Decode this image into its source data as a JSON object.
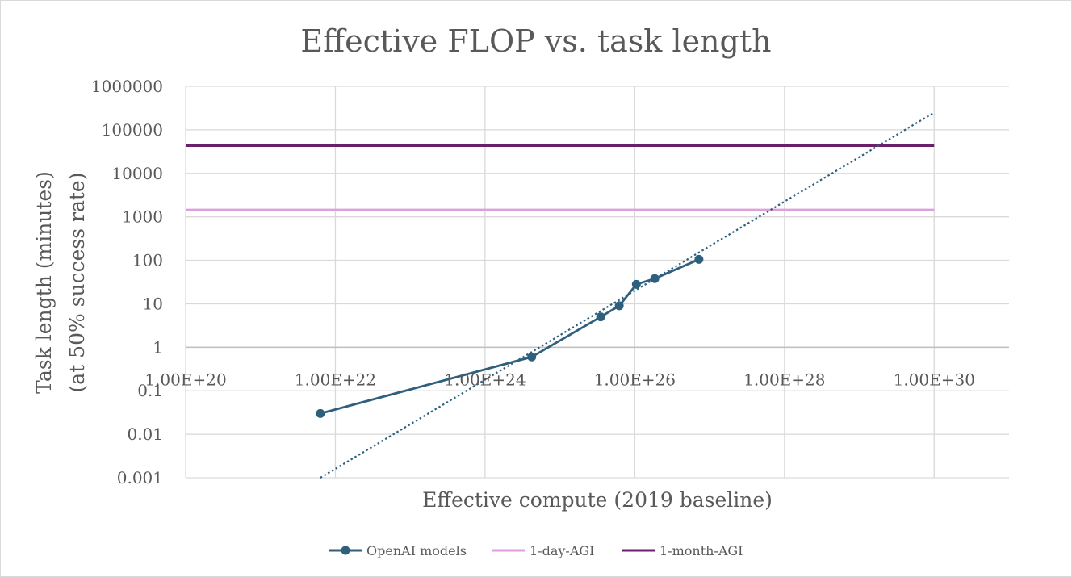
{
  "chart_data": {
    "type": "line",
    "title": "Effective FLOP vs. task length",
    "xlabel": "Effective compute  (2019 baseline)",
    "ylabel_line1": "Task length (minutes)",
    "ylabel_line2": "(at 50% success rate)",
    "x_scale": "log",
    "y_scale": "log",
    "xlim": [
      1e+20,
      1e+31
    ],
    "ylim": [
      0.001,
      1000000
    ],
    "x_tick_values": [
      1e+20,
      1e+22,
      1e+24,
      1e+26,
      1e+28,
      1e+30
    ],
    "x_tick_labels": [
      "1.00E+20",
      "1.00E+22",
      "1.00E+24",
      "1.00E+26",
      "1.00E+28",
      "1.00E+30"
    ],
    "y_tick_values": [
      0.001,
      0.01,
      0.1,
      1,
      10,
      100,
      1000,
      10000,
      100000,
      1000000
    ],
    "y_tick_labels": [
      "0.001",
      "0.01",
      "0.1",
      "1",
      "10",
      "100",
      "1000",
      "10000",
      "100000",
      "1000000"
    ],
    "grid": true,
    "legend_position": "bottom",
    "series": [
      {
        "name": "OpenAI models",
        "color": "#2e5f7d",
        "marker": "circle",
        "x": [
          6.3e+21,
          4.2e+24,
          3.5e+25,
          6.2e+25,
          1.05e+26,
          1.85e+26,
          7.2e+26
        ],
        "y": [
          0.03,
          0.6,
          5,
          9,
          28,
          38,
          105
        ]
      },
      {
        "name": "1-day-AGI",
        "color": "#dda0dd",
        "x": [
          1e+20,
          1e+30
        ],
        "y": [
          1440,
          1440
        ]
      },
      {
        "name": "1-month-AGI",
        "color": "#6b1f6b",
        "x": [
          1e+20,
          1e+30
        ],
        "y": [
          43200,
          43200
        ]
      }
    ],
    "trendline": {
      "type": "power",
      "color": "#2e5f7d",
      "style": "dotted",
      "x": [
        6.3e+21,
        1e+30
      ],
      "y": [
        0.001,
        250000
      ]
    }
  }
}
